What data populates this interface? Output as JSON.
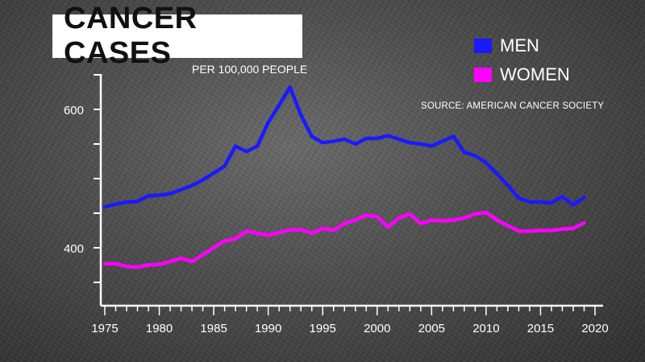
{
  "title": "CANCER CASES",
  "subtitle": "PER 100,000 PEOPLE",
  "source": "SOURCE: AMERICAN CANCER SOCIETY",
  "legend": [
    {
      "label": "MEN",
      "color": "#1a1aff"
    },
    {
      "label": "WOMEN",
      "color": "#ff00ff"
    }
  ],
  "chart_data": {
    "type": "line",
    "title": "CANCER CASES",
    "subtitle": "PER 100,000 PEOPLE",
    "xlabel": "",
    "ylabel": "",
    "xlim": [
      1975,
      2020
    ],
    "ylim": [
      310,
      640
    ],
    "xticks": [
      1975,
      1980,
      1985,
      1990,
      1995,
      2000,
      2005,
      2010,
      2015,
      2020
    ],
    "yticks": [
      400,
      600
    ],
    "grid": false,
    "legend_position": "top-right",
    "x": [
      1975,
      1976,
      1977,
      1978,
      1979,
      1980,
      1981,
      1982,
      1983,
      1984,
      1985,
      1986,
      1987,
      1988,
      1989,
      1990,
      1991,
      1992,
      1993,
      1994,
      1995,
      1996,
      1997,
      1998,
      1999,
      2000,
      2001,
      2002,
      2003,
      2004,
      2005,
      2006,
      2007,
      2008,
      2009,
      2010,
      2011,
      2012,
      2013,
      2014,
      2015,
      2016,
      2017,
      2018,
      2019
    ],
    "series": [
      {
        "name": "MEN",
        "color": "#1a1aff",
        "values": [
          459,
          463,
          466,
          467,
          475,
          476,
          478,
          484,
          490,
          498,
          508,
          518,
          547,
          539,
          547,
          581,
          606,
          632,
          592,
          561,
          552,
          554,
          557,
          550,
          558,
          558,
          562,
          557,
          552,
          550,
          547,
          554,
          561,
          538,
          533,
          523,
          507,
          490,
          472,
          466,
          466,
          465,
          474,
          462,
          473
        ]
      },
      {
        "name": "WOMEN",
        "color": "#ff00ff",
        "values": [
          377,
          377,
          373,
          372,
          375,
          376,
          380,
          385,
          380,
          390,
          400,
          410,
          413,
          424,
          421,
          418,
          422,
          426,
          426,
          421,
          428,
          425,
          435,
          440,
          447,
          445,
          430,
          443,
          449,
          435,
          440,
          439,
          440,
          443,
          449,
          451,
          440,
          432,
          424,
          424,
          425,
          425,
          427,
          428,
          436
        ]
      }
    ]
  }
}
